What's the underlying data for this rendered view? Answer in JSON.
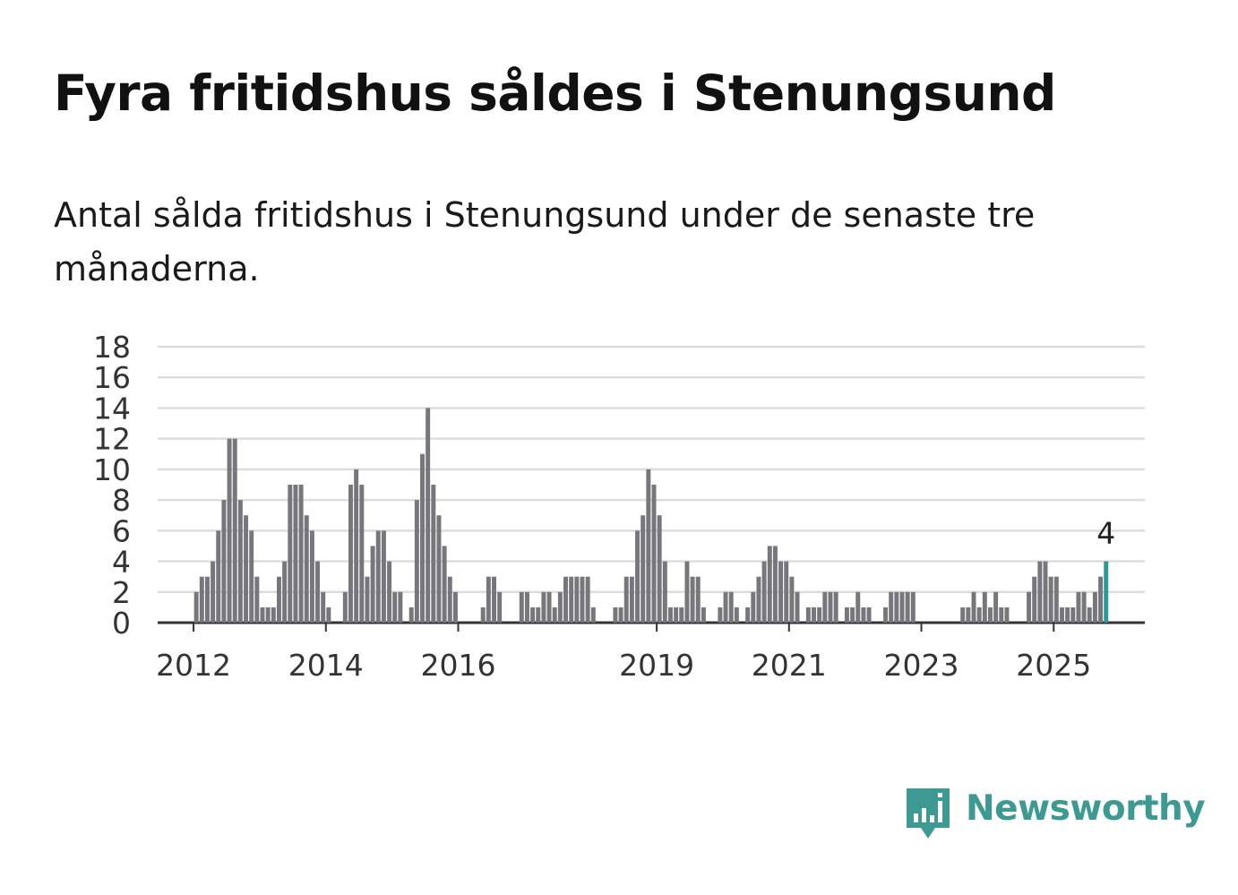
{
  "title": "Fyra fritidshus såldes i Stenungsund",
  "subtitle": "Antal sålda fritidshus i Stenungsund under de senaste tre månaderna.",
  "brand": {
    "name": "Newsworthy",
    "color": "#3c9a93"
  },
  "colors": {
    "bar": "#76767c",
    "highlight": "#2e9a96",
    "grid": "#dddddd",
    "axis": "#333333"
  },
  "chart_data": {
    "type": "bar",
    "title": "",
    "xlabel": "",
    "ylabel": "",
    "ylim": [
      0,
      18
    ],
    "yticks": [
      "0",
      "2",
      "4",
      "6",
      "8",
      "10",
      "12",
      "14",
      "16",
      "18"
    ],
    "start": "2011-01",
    "xticks": [
      {
        "label": "2012",
        "month": "2012-01"
      },
      {
        "label": "2014",
        "month": "2014-01"
      },
      {
        "label": "2016",
        "month": "2016-01"
      },
      {
        "label": "2019",
        "month": "2019-01"
      },
      {
        "label": "2021",
        "month": "2021-01"
      },
      {
        "label": "2023",
        "month": "2023-01"
      },
      {
        "label": "2025",
        "month": "2025-01"
      }
    ],
    "values": [
      0,
      0,
      0,
      0,
      0,
      0,
      0,
      0,
      0,
      0,
      0,
      0,
      2,
      3,
      3,
      4,
      6,
      8,
      12,
      12,
      8,
      7,
      6,
      3,
      1,
      1,
      1,
      3,
      4,
      9,
      9,
      9,
      7,
      6,
      4,
      2,
      1,
      0,
      0,
      2,
      9,
      10,
      9,
      3,
      5,
      6,
      6,
      4,
      2,
      2,
      0,
      1,
      8,
      11,
      14,
      9,
      7,
      5,
      3,
      2,
      0,
      0,
      0,
      0,
      1,
      3,
      3,
      2,
      0,
      0,
      0,
      2,
      2,
      1,
      1,
      2,
      2,
      1,
      2,
      3,
      3,
      3,
      3,
      3,
      1,
      0,
      0,
      0,
      1,
      1,
      3,
      3,
      6,
      7,
      10,
      9,
      7,
      4,
      1,
      1,
      1,
      4,
      3,
      3,
      1,
      0,
      0,
      1,
      2,
      2,
      1,
      0,
      1,
      2,
      3,
      4,
      5,
      5,
      4,
      4,
      3,
      2,
      0,
      1,
      1,
      1,
      2,
      2,
      2,
      0,
      1,
      1,
      2,
      1,
      1,
      0,
      0,
      1,
      2,
      2,
      2,
      2,
      2,
      0,
      0,
      0,
      0,
      0,
      0,
      0,
      0,
      1,
      1,
      2,
      1,
      2,
      1,
      2,
      1,
      1,
      0,
      0,
      0,
      2,
      3,
      4,
      4,
      3,
      3,
      1,
      1,
      1,
      2,
      2,
      1,
      2,
      3,
      4
    ],
    "highlight_label": "4",
    "series": [
      {
        "values": "values"
      }
    ]
  }
}
